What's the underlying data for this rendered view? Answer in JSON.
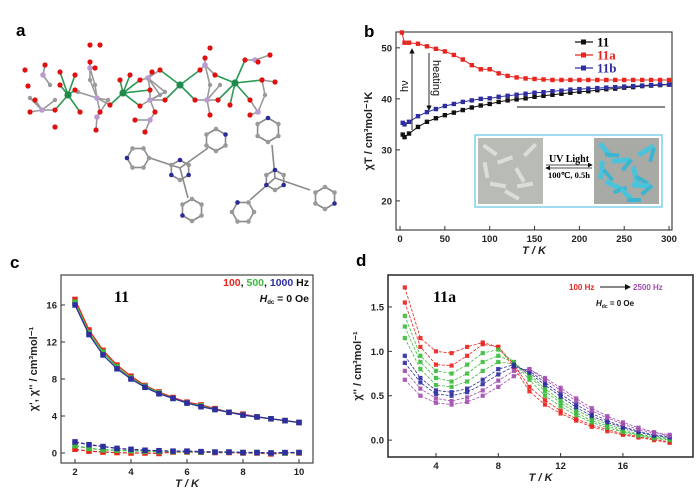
{
  "panel_labels": {
    "a": "a",
    "b": "b",
    "c": "c",
    "d": "d"
  },
  "panel_a": {
    "description_colors": {
      "metal": "#1f8a4c",
      "oxygen": "#e01010",
      "phosphorus": "#b99bd0",
      "carbon": "#9a9a9a",
      "nitrogen": "#2a2a9a"
    }
  },
  "chart_data": [
    {
      "id": "b",
      "type": "scatter",
      "xlabel": "T / K",
      "ylabel": "χT / cm³mol⁻¹K",
      "xlim": [
        -4.5,
        303.3
      ],
      "ylim": [
        14.3,
        53.1
      ],
      "xticks": [
        "0",
        "50",
        "100",
        "150",
        "200",
        "250",
        "300"
      ],
      "yticks": [
        "20",
        "30",
        "40",
        "50"
      ],
      "legend_position": "top-right",
      "series": [
        {
          "name": "11",
          "color": "#111111",
          "x": [
            3,
            5,
            10,
            20,
            30,
            40,
            50,
            60,
            70,
            80,
            90,
            100,
            110,
            120,
            130,
            140,
            150,
            160,
            170,
            180,
            190,
            200,
            210,
            220,
            230,
            240,
            250,
            260,
            270,
            280,
            290,
            300
          ],
          "y": [
            33.0,
            32.5,
            33.2,
            34.5,
            35.5,
            36.2,
            36.8,
            37.3,
            37.8,
            38.3,
            38.7,
            39.0,
            39.4,
            39.7,
            39.9,
            40.1,
            40.4,
            40.6,
            40.8,
            41.0,
            41.2,
            41.4,
            41.5,
            41.7,
            41.9,
            42.0,
            42.2,
            42.3,
            42.5,
            42.6,
            42.7,
            42.8
          ]
        },
        {
          "name": "11a",
          "color": "#e8251f",
          "x": [
            2,
            5,
            10,
            20,
            30,
            40,
            50,
            60,
            70,
            80,
            90,
            100,
            110,
            120,
            130,
            140,
            150,
            160,
            170,
            180,
            190,
            200,
            210,
            220,
            230,
            240,
            250,
            260,
            270,
            280,
            290,
            300
          ],
          "y": [
            53.0,
            51.0,
            51.0,
            50.8,
            50.3,
            49.8,
            49.3,
            48.6,
            47.7,
            46.6,
            45.8,
            45.8,
            45.0,
            44.5,
            44.2,
            44.0,
            43.9,
            43.8,
            43.7,
            43.7,
            43.7,
            43.7,
            43.7,
            43.7,
            43.7,
            43.7,
            43.7,
            43.7,
            43.7,
            43.7,
            43.7,
            43.7
          ]
        },
        {
          "name": "11b",
          "color": "#2f2ea0",
          "x": [
            3,
            5,
            10,
            20,
            30,
            40,
            50,
            60,
            70,
            80,
            90,
            100,
            110,
            120,
            130,
            140,
            150,
            160,
            170,
            180,
            190,
            200,
            210,
            220,
            230,
            240,
            250,
            260,
            270,
            280,
            290,
            300
          ],
          "y": [
            35.3,
            35.0,
            35.5,
            36.6,
            37.4,
            38.0,
            38.6,
            39.0,
            39.4,
            39.7,
            40.0,
            40.1,
            40.4,
            40.6,
            40.8,
            41.0,
            41.2,
            41.3,
            41.5,
            41.6,
            41.8,
            41.9,
            42.0,
            42.1,
            42.2,
            42.3,
            42.4,
            42.5,
            42.6,
            42.7,
            42.8,
            42.8
          ]
        }
      ],
      "annotations": {
        "hv": "hν",
        "heating": "heating",
        "inset_uv": "UV Light",
        "inset_heat": "100℃, 0.5h"
      },
      "inset_colors": {
        "border": "#7fd0e8",
        "before": "#b9bbb5",
        "after": "#4cc3dc"
      }
    },
    {
      "id": "c",
      "type": "line",
      "xlabel": "T / K",
      "ylabel": "χ', χ'' / cm³mol⁻¹",
      "xlim": [
        1.5,
        10.5
      ],
      "ylim": [
        -1.08,
        19.24
      ],
      "xticks": [
        "2",
        "4",
        "6",
        "8",
        "10"
      ],
      "yticks": [
        "0",
        "4",
        "8",
        "12",
        "16"
      ],
      "compound": "11",
      "freq_legend": [
        {
          "text": "100",
          "color": "#e8251f"
        },
        {
          "text": "500",
          "color": "#3dbb3d"
        },
        {
          "text": "1000",
          "color": "#2f2ea0"
        }
      ],
      "freq_unit": "Hz",
      "field": {
        "symbol": "H",
        "sub": "dc",
        "value": " = 0 Oe"
      },
      "x": [
        2,
        2.5,
        3,
        3.5,
        4,
        4.5,
        5,
        5.5,
        6,
        6.5,
        7,
        7.5,
        8,
        8.5,
        9,
        9.5,
        10
      ],
      "series": [
        {
          "name": "100",
          "kind": "in-phase",
          "color": "#e8251f",
          "y": [
            16.6,
            13.3,
            11.1,
            9.5,
            8.3,
            7.3,
            6.6,
            6.0,
            5.5,
            5.2,
            4.8,
            4.4,
            4.2,
            3.9,
            3.7,
            3.5,
            3.3
          ]
        },
        {
          "name": "500",
          "kind": "in-phase",
          "color": "#3dbb3d",
          "y": [
            16.3,
            13.0,
            10.9,
            9.3,
            8.1,
            7.2,
            6.5,
            5.9,
            5.4,
            5.1,
            4.7,
            4.4,
            4.1,
            3.9,
            3.7,
            3.5,
            3.3
          ]
        },
        {
          "name": "1000",
          "kind": "in-phase",
          "color": "#2f2ea0",
          "y": [
            16.0,
            12.8,
            10.6,
            9.1,
            8.0,
            7.1,
            6.4,
            5.9,
            5.4,
            5.0,
            4.7,
            4.4,
            4.1,
            3.9,
            3.7,
            3.5,
            3.3
          ]
        },
        {
          "name": "100",
          "kind": "out-of-phase",
          "color": "#e8251f",
          "y": [
            0.4,
            0.2,
            0.1,
            0.05,
            0.0,
            0.0,
            -0.05,
            0.1,
            0.1,
            0.1,
            0.05,
            0.05,
            0.0,
            0.0,
            -0.1,
            0.0,
            0.0
          ]
        },
        {
          "name": "500",
          "kind": "out-of-phase",
          "color": "#3dbb3d",
          "y": [
            0.8,
            0.5,
            0.35,
            0.3,
            0.25,
            0.2,
            0.15,
            0.15,
            0.15,
            0.1,
            0.1,
            0.1,
            0.05,
            0.05,
            0.0,
            0.0,
            0.05
          ]
        },
        {
          "name": "1000",
          "kind": "out-of-phase",
          "color": "#2f2ea0",
          "y": [
            1.2,
            0.9,
            0.7,
            0.5,
            0.4,
            0.3,
            0.25,
            0.2,
            0.2,
            0.15,
            0.1,
            0.1,
            0.05,
            0.05,
            0.0,
            0.05,
            0.05
          ]
        }
      ]
    },
    {
      "id": "d",
      "type": "line",
      "xlabel": "T / K",
      "ylabel": "χ'' / cm³mol⁻¹",
      "xlim": [
        0.92,
        20.5
      ],
      "ylim": [
        -0.19,
        1.86
      ],
      "xticks": [
        "4",
        "8",
        "12",
        "16"
      ],
      "yticks": [
        "0.0",
        "0.5",
        "1.0",
        "1.5"
      ],
      "compound": "11a",
      "freq_range": {
        "from": "100 Hz",
        "to": "2500 Hz",
        "from_color": "#e8251f",
        "to_color": "#a24fb0"
      },
      "field": {
        "symbol": "H",
        "sub": "dc",
        "value": " = 0 Oe"
      },
      "x": [
        2,
        3,
        4,
        5,
        6,
        7,
        8,
        9,
        10,
        11,
        12,
        13,
        14,
        15,
        16,
        17,
        18,
        19
      ],
      "series": [
        {
          "color": "#e8251f",
          "y": [
            1.72,
            1.15,
            1.0,
            0.98,
            1.05,
            1.1,
            1.05,
            0.82,
            0.55,
            0.4,
            0.3,
            0.22,
            0.15,
            0.1,
            0.06,
            0.03,
            0.0,
            -0.03
          ]
        },
        {
          "color": "#e8251f",
          "y": [
            1.55,
            1.05,
            0.85,
            0.84,
            0.95,
            1.08,
            1.05,
            0.85,
            0.6,
            0.45,
            0.33,
            0.24,
            0.17,
            0.12,
            0.07,
            0.04,
            0.01,
            -0.02
          ]
        },
        {
          "color": "#3dbb3d",
          "y": [
            1.4,
            0.95,
            0.78,
            0.75,
            0.85,
            0.98,
            1.02,
            0.88,
            0.68,
            0.5,
            0.38,
            0.28,
            0.2,
            0.14,
            0.09,
            0.05,
            0.02,
            0.0
          ]
        },
        {
          "color": "#3dbb3d",
          "y": [
            1.28,
            0.88,
            0.7,
            0.66,
            0.75,
            0.88,
            0.95,
            0.88,
            0.72,
            0.55,
            0.42,
            0.31,
            0.22,
            0.16,
            0.1,
            0.06,
            0.03,
            0.01
          ]
        },
        {
          "color": "#3dbb3d",
          "y": [
            1.15,
            0.8,
            0.62,
            0.6,
            0.66,
            0.78,
            0.88,
            0.86,
            0.74,
            0.58,
            0.45,
            0.34,
            0.25,
            0.18,
            0.12,
            0.07,
            0.04,
            0.02
          ]
        },
        {
          "color": "#2f2ea0",
          "y": [
            0.95,
            0.7,
            0.56,
            0.54,
            0.58,
            0.68,
            0.8,
            0.85,
            0.76,
            0.62,
            0.49,
            0.37,
            0.27,
            0.2,
            0.14,
            0.09,
            0.05,
            0.03
          ]
        },
        {
          "color": "#2f2ea0",
          "y": [
            0.87,
            0.65,
            0.52,
            0.5,
            0.54,
            0.63,
            0.74,
            0.83,
            0.78,
            0.65,
            0.52,
            0.4,
            0.3,
            0.22,
            0.15,
            0.1,
            0.06,
            0.04
          ]
        },
        {
          "color": "#a24fb0",
          "y": [
            0.78,
            0.58,
            0.47,
            0.44,
            0.48,
            0.56,
            0.67,
            0.78,
            0.8,
            0.68,
            0.56,
            0.44,
            0.33,
            0.25,
            0.18,
            0.12,
            0.08,
            0.05
          ]
        },
        {
          "color": "#a24fb0",
          "y": [
            0.68,
            0.5,
            0.42,
            0.4,
            0.43,
            0.5,
            0.6,
            0.72,
            0.8,
            0.7,
            0.59,
            0.47,
            0.36,
            0.27,
            0.2,
            0.14,
            0.09,
            0.06
          ]
        }
      ]
    }
  ]
}
